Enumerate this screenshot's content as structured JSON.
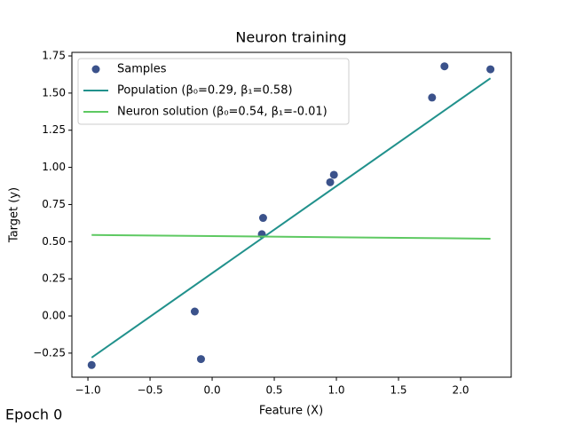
{
  "chart_data": {
    "type": "scatter",
    "title": "Neuron training",
    "x_label": "Feature (X)",
    "y_label": "Target (y)",
    "annotation": "Epoch 0",
    "legend": "upper left",
    "xlim": [
      -1.129,
      2.407
    ],
    "ylim": [
      -0.412,
      1.774
    ],
    "xticks": [
      {
        "value": -1.0,
        "label": "−1.0"
      },
      {
        "value": -0.5,
        "label": "−0.5"
      },
      {
        "value": 0.0,
        "label": "0.0"
      },
      0.5,
      {
        "value": 1.0,
        "label": "1.0"
      },
      1.5,
      {
        "value": 2.0,
        "label": "2.0"
      }
    ],
    "yticks": [
      {
        "value": -0.25,
        "label": "−0.25"
      },
      {
        "value": 0.0,
        "label": "0.00"
      },
      0.25,
      {
        "value": 0.5,
        "label": "0.50"
      },
      0.75,
      {
        "value": 1.0,
        "label": "1.00"
      },
      1.25,
      {
        "value": 1.5,
        "label": "1.50"
      },
      1.75
    ],
    "series": [
      {
        "name": "Samples",
        "kind": "scatter",
        "color": "#3b528b",
        "x": [
          -0.97,
          -0.14,
          -0.09,
          0.41,
          0.4,
          0.95,
          0.98,
          1.77,
          1.87,
          2.24
        ],
        "values": [
          -0.33,
          0.03,
          -0.29,
          0.66,
          0.55,
          0.9,
          0.95,
          1.47,
          1.68,
          1.66
        ]
      },
      {
        "name": "Population (β₀=0.29, β₁=0.58)",
        "kind": "line",
        "color": "#21918c",
        "x": [
          -0.97,
          2.24
        ],
        "values": [
          -0.28,
          1.6
        ]
      },
      {
        "name": "Neuron solution (β₀=0.54, β₁=-0.01)",
        "kind": "line",
        "color": "#5ec962",
        "x": [
          -0.97,
          2.24
        ],
        "values": [
          0.545,
          0.52
        ]
      }
    ]
  }
}
